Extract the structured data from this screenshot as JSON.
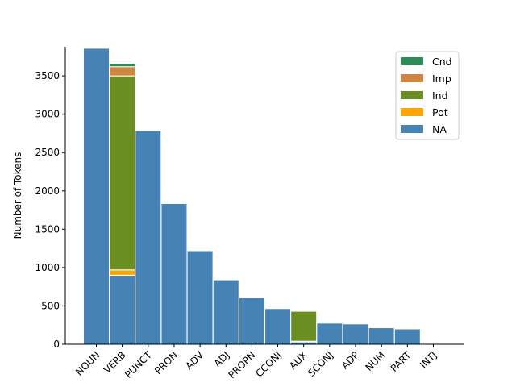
{
  "chart_data": {
    "type": "bar",
    "stacked": true,
    "title": "",
    "xlabel": "",
    "ylabel": "Number of Tokens",
    "ylim": [
      0,
      3880
    ],
    "yticks": [
      0,
      500,
      1000,
      1500,
      2000,
      2500,
      3000,
      3500
    ],
    "categories": [
      "NOUN",
      "VERB",
      "PUNCT",
      "PRON",
      "ADV",
      "ADJ",
      "PROPN",
      "CCONJ",
      "AUX",
      "SCONJ",
      "ADP",
      "NUM",
      "PART",
      "INTJ"
    ],
    "series": [
      {
        "name": "NA",
        "color": "#4682b4",
        "values": [
          3860,
          900,
          2790,
          1835,
          1220,
          840,
          610,
          465,
          30,
          275,
          265,
          215,
          200,
          0
        ]
      },
      {
        "name": "Pot",
        "color": "#ffa500",
        "values": [
          0,
          70,
          0,
          0,
          0,
          0,
          0,
          0,
          10,
          0,
          0,
          0,
          0,
          0
        ]
      },
      {
        "name": "Ind",
        "color": "#6b8e23",
        "values": [
          0,
          2530,
          0,
          0,
          0,
          0,
          0,
          0,
          390,
          0,
          0,
          0,
          0,
          0
        ]
      },
      {
        "name": "Imp",
        "color": "#cd853f",
        "values": [
          0,
          120,
          0,
          0,
          0,
          0,
          0,
          0,
          0,
          0,
          0,
          0,
          0,
          0
        ]
      },
      {
        "name": "Cnd",
        "color": "#2e8b57",
        "values": [
          0,
          40,
          0,
          0,
          0,
          0,
          0,
          0,
          0,
          0,
          0,
          0,
          0,
          0
        ]
      }
    ],
    "legend": {
      "position": "top-right",
      "entries": [
        {
          "label": "Cnd",
          "color": "#2e8b57"
        },
        {
          "label": "Imp",
          "color": "#cd853f"
        },
        {
          "label": "Ind",
          "color": "#6b8e23"
        },
        {
          "label": "Pot",
          "color": "#ffa500"
        },
        {
          "label": "NA",
          "color": "#4682b4"
        }
      ]
    },
    "grid": false
  }
}
